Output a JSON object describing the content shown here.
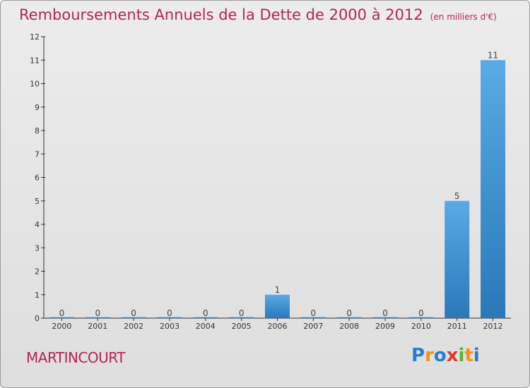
{
  "title": "Remboursements Annuels de la Dette de 2000 à 2012",
  "unit": "(en milliers d'€)",
  "commune": "MARTINCOURT",
  "logo": [
    "P",
    "r",
    "o",
    "x",
    "i",
    "t",
    "i"
  ],
  "logo_colors": [
    "#2a7bd1",
    "#f29018",
    "#2a7bd1",
    "#d83a2e",
    "#57b531",
    "#f29018",
    "#2a7bd1"
  ],
  "colors": {
    "title": "#b4245a",
    "bar_top": "#5aaae6",
    "bar_bottom": "#2a78b8"
  },
  "chart_data": {
    "type": "bar",
    "categories": [
      "2000",
      "2001",
      "2002",
      "2003",
      "2004",
      "2005",
      "2006",
      "2007",
      "2008",
      "2009",
      "2010",
      "2011",
      "2012"
    ],
    "values": [
      0,
      0,
      0,
      0,
      0,
      0,
      1,
      0,
      0,
      0,
      0,
      5,
      11
    ],
    "data_labels": [
      "0",
      "0",
      "0",
      "0",
      "0",
      "0",
      "1",
      "0",
      "0",
      "0",
      "0",
      "5",
      "11"
    ],
    "ylim": [
      0,
      12
    ],
    "yticks": [
      0,
      1,
      2,
      3,
      4,
      5,
      6,
      7,
      8,
      9,
      10,
      11,
      12
    ],
    "xlabel": "",
    "ylabel": "",
    "grid": false,
    "legend": "none"
  }
}
